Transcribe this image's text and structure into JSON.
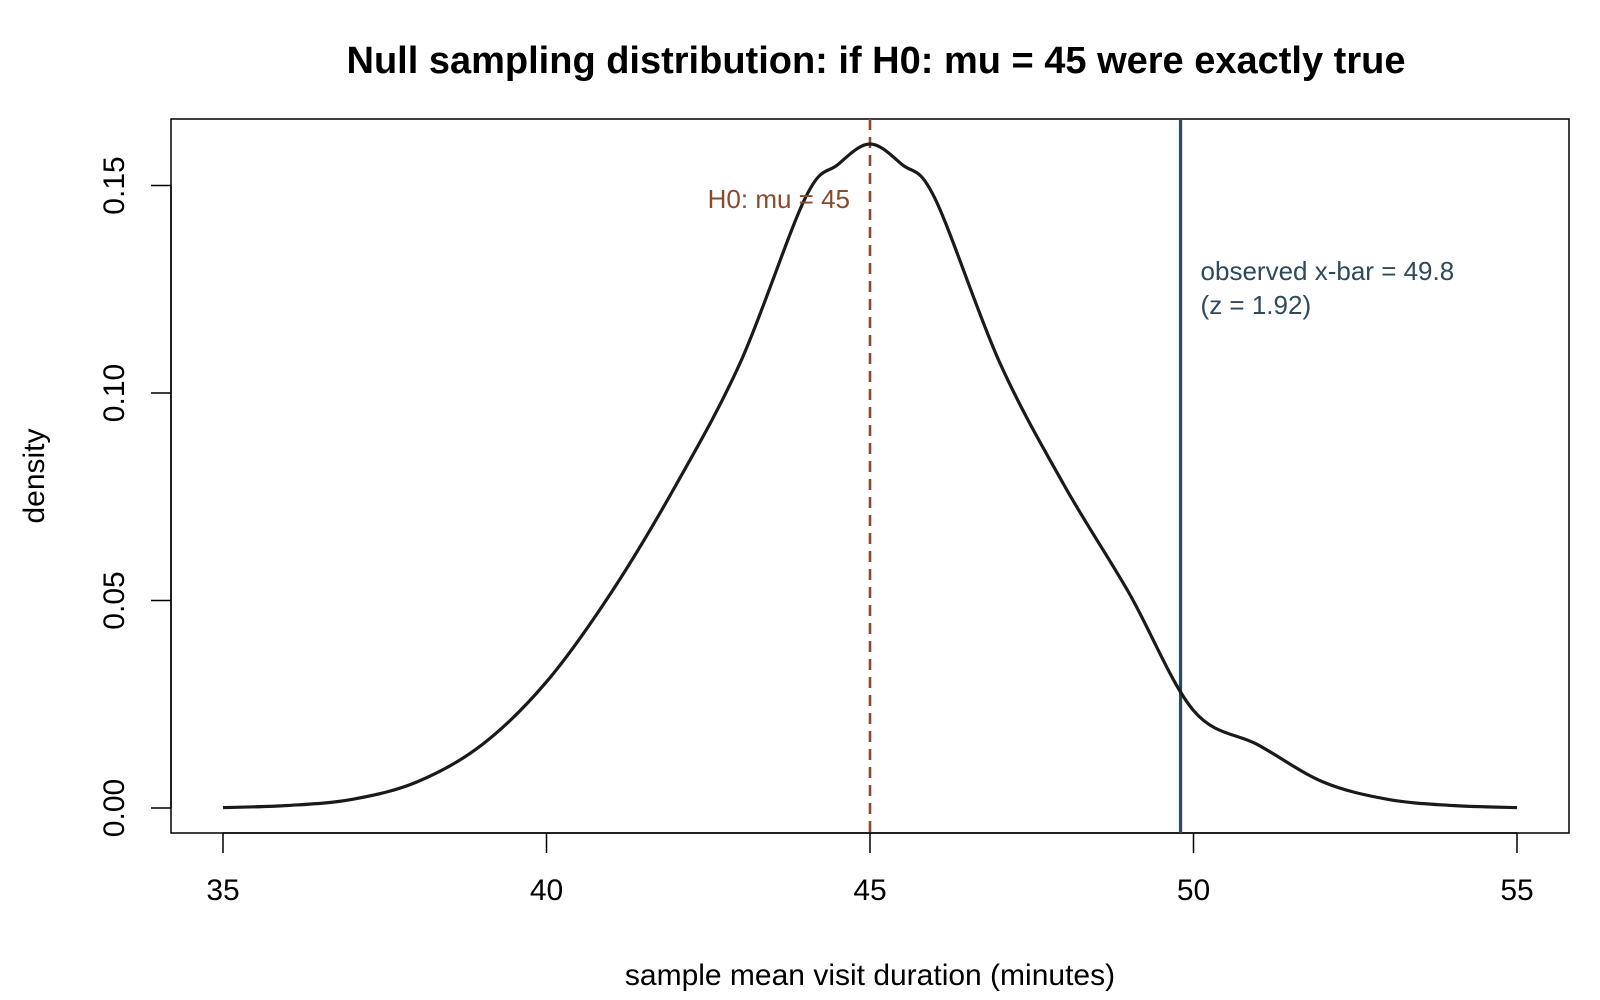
{
  "chart_data": {
    "type": "line",
    "title": "Null sampling distribution: if H0: mu = 45 were exactly true",
    "xlabel": "sample mean visit duration (minutes)",
    "ylabel": "density",
    "xlim": [
      35,
      55
    ],
    "ylim": [
      0,
      0.16
    ],
    "x_ticks": [
      35,
      40,
      45,
      50,
      55
    ],
    "x_tick_labels": [
      "35",
      "40",
      "45",
      "50",
      "55"
    ],
    "y_ticks": [
      0,
      0.05,
      0.1,
      0.15
    ],
    "y_tick_labels": [
      "0.00",
      "0.05",
      "0.10",
      "0.15"
    ],
    "grid": false,
    "series": [
      {
        "x": [
          35,
          36,
          37,
          38,
          39,
          40,
          41,
          42,
          43,
          44,
          44.5,
          45,
          45.5,
          46,
          47,
          48,
          49,
          50,
          51,
          52,
          53,
          54,
          55
        ],
        "y": [
          0.0001,
          0.0006,
          0.0021,
          0.0063,
          0.0152,
          0.0304,
          0.0519,
          0.0778,
          0.1075,
          0.147,
          0.155,
          0.16,
          0.155,
          0.147,
          0.1075,
          0.0778,
          0.0519,
          0.0235,
          0.0152,
          0.0063,
          0.0021,
          0.0006,
          0.0001
        ],
        "color": "#1a1a1a"
      }
    ],
    "reference_lines": [
      {
        "x": 45,
        "style": "dashed",
        "color": "#8b4a2b",
        "label": "H0: mu = 45"
      },
      {
        "x": 49.8,
        "style": "solid",
        "color": "#2c4a5c",
        "label_lines": [
          "observed x-bar = 49.8",
          "(z = 1.92)"
        ]
      }
    ]
  }
}
